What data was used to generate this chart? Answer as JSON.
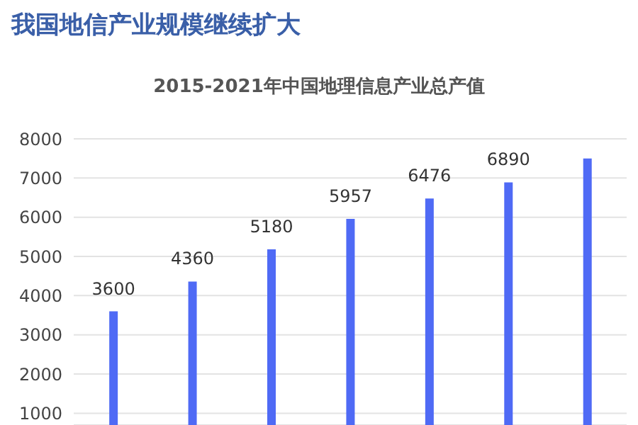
{
  "chart_data": {
    "type": "bar",
    "title": "我国地信产业规模继续扩大",
    "subtitle": "2015-2021年中国地理信息产业总产值",
    "categories": [
      null,
      null,
      null,
      null,
      null,
      null,
      null
    ],
    "values": [
      3600,
      4360,
      5180,
      5957,
      6476,
      6890,
      7500
    ],
    "value_labels": [
      "3600",
      "4360",
      "5180",
      "5957",
      "6476",
      "6890",
      null
    ],
    "color": "#4f6af5",
    "ylim": [
      700,
      8000
    ],
    "yticks": [
      1000,
      2000,
      3000,
      4000,
      5000,
      6000,
      7000,
      8000
    ],
    "grid": "y",
    "tick_labels": "y"
  }
}
